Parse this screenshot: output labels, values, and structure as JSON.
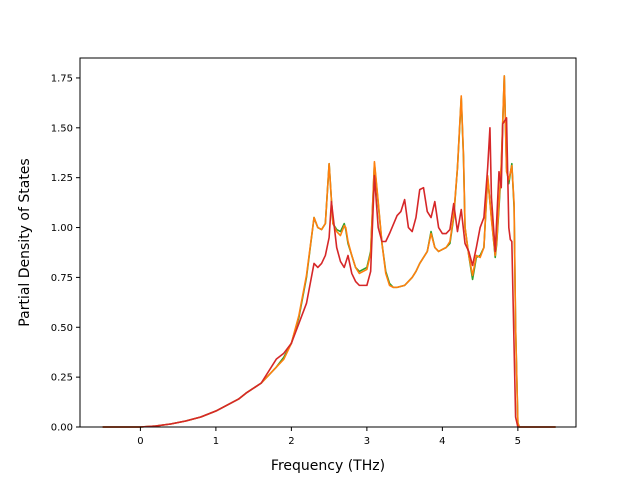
{
  "chart_data": {
    "type": "line",
    "title": "",
    "xlabel": "Frequency (THz)",
    "ylabel": "Partial Density of States",
    "xlim": [
      -0.8,
      5.77
    ],
    "ylim": [
      0,
      1.85
    ],
    "xticks": [
      0,
      1,
      2,
      3,
      4,
      5
    ],
    "xtick_labels": [
      "0",
      "1",
      "2",
      "3",
      "4",
      "5"
    ],
    "yticks": [
      0,
      0.25,
      0.5,
      0.75,
      1.0,
      1.25,
      1.5,
      1.75
    ],
    "ytick_labels": [
      "0.00",
      "0.25",
      "0.50",
      "0.75",
      "1.00",
      "1.25",
      "1.50",
      "1.75"
    ],
    "grid": false,
    "series": [
      {
        "color": "#2ca02c",
        "x": [
          -0.5,
          0.0,
          0.2,
          0.4,
          0.6,
          0.8,
          1.0,
          1.2,
          1.3,
          1.4,
          1.6,
          1.8,
          1.9,
          2.0,
          2.1,
          2.2,
          2.3,
          2.35,
          2.4,
          2.45,
          2.5,
          2.55,
          2.6,
          2.65,
          2.7,
          2.72,
          2.75,
          2.8,
          2.85,
          2.9,
          3.0,
          3.05,
          3.1,
          3.15,
          3.2,
          3.25,
          3.3,
          3.35,
          3.4,
          3.5,
          3.55,
          3.6,
          3.65,
          3.7,
          3.8,
          3.85,
          3.9,
          3.95,
          4.0,
          4.05,
          4.1,
          4.15,
          4.2,
          4.25,
          4.28,
          4.3,
          4.35,
          4.4,
          4.45,
          4.5,
          4.55,
          4.6,
          4.65,
          4.7,
          4.72,
          4.75,
          4.78,
          4.82,
          4.85,
          4.88,
          4.92,
          4.95,
          4.97,
          5.0,
          5.02,
          5.5
        ],
        "y": [
          0,
          0,
          0.005,
          0.015,
          0.03,
          0.05,
          0.08,
          0.12,
          0.14,
          0.17,
          0.22,
          0.3,
          0.35,
          0.42,
          0.55,
          0.75,
          1.05,
          1.0,
          0.99,
          1.02,
          1.32,
          1.02,
          0.99,
          0.98,
          1.02,
          0.99,
          0.92,
          0.86,
          0.8,
          0.78,
          0.8,
          0.88,
          1.32,
          1.12,
          0.92,
          0.78,
          0.72,
          0.7,
          0.7,
          0.71,
          0.73,
          0.75,
          0.78,
          0.82,
          0.88,
          0.98,
          0.9,
          0.88,
          0.89,
          0.9,
          0.92,
          1.05,
          1.3,
          1.65,
          1.35,
          1.0,
          0.86,
          0.74,
          0.85,
          0.86,
          0.9,
          1.25,
          1.05,
          0.85,
          0.92,
          1.1,
          1.3,
          1.76,
          1.3,
          1.22,
          1.32,
          1.1,
          0.5,
          0.02,
          0,
          0
        ]
      },
      {
        "color": "#ff7f0e",
        "x": [
          -0.5,
          0.0,
          0.2,
          0.4,
          0.6,
          0.8,
          1.0,
          1.2,
          1.3,
          1.4,
          1.6,
          1.8,
          1.9,
          2.0,
          2.1,
          2.2,
          2.3,
          2.35,
          2.4,
          2.45,
          2.5,
          2.55,
          2.6,
          2.65,
          2.7,
          2.72,
          2.75,
          2.8,
          2.85,
          2.9,
          3.0,
          3.05,
          3.1,
          3.15,
          3.2,
          3.25,
          3.3,
          3.35,
          3.4,
          3.5,
          3.55,
          3.6,
          3.65,
          3.7,
          3.8,
          3.85,
          3.9,
          3.95,
          4.0,
          4.05,
          4.1,
          4.15,
          4.2,
          4.25,
          4.28,
          4.3,
          4.35,
          4.4,
          4.45,
          4.5,
          4.55,
          4.6,
          4.65,
          4.7,
          4.72,
          4.75,
          4.78,
          4.82,
          4.85,
          4.88,
          4.92,
          4.95,
          4.97,
          5.0,
          5.02,
          5.5
        ],
        "y": [
          0,
          0,
          0.005,
          0.015,
          0.03,
          0.05,
          0.08,
          0.12,
          0.14,
          0.17,
          0.22,
          0.3,
          0.34,
          0.42,
          0.56,
          0.76,
          1.05,
          1.0,
          0.99,
          1.02,
          1.32,
          1.02,
          0.98,
          0.96,
          1.01,
          1.0,
          0.93,
          0.86,
          0.8,
          0.77,
          0.79,
          0.87,
          1.33,
          1.13,
          0.92,
          0.77,
          0.71,
          0.7,
          0.7,
          0.71,
          0.73,
          0.75,
          0.78,
          0.82,
          0.88,
          0.97,
          0.9,
          0.88,
          0.89,
          0.9,
          0.93,
          1.06,
          1.3,
          1.66,
          1.36,
          1.0,
          0.86,
          0.76,
          0.86,
          0.85,
          0.9,
          1.26,
          1.04,
          0.86,
          0.93,
          1.12,
          1.32,
          1.76,
          1.28,
          1.24,
          1.31,
          1.12,
          0.5,
          0.02,
          0,
          0
        ]
      },
      {
        "color": "#d62728",
        "x": [
          -0.5,
          0.0,
          0.2,
          0.4,
          0.6,
          0.8,
          1.0,
          1.2,
          1.3,
          1.4,
          1.6,
          1.8,
          1.9,
          2.0,
          2.1,
          2.2,
          2.25,
          2.3,
          2.35,
          2.4,
          2.45,
          2.5,
          2.53,
          2.6,
          2.65,
          2.7,
          2.75,
          2.8,
          2.85,
          2.9,
          3.0,
          3.05,
          3.1,
          3.15,
          3.2,
          3.25,
          3.3,
          3.4,
          3.45,
          3.5,
          3.55,
          3.6,
          3.65,
          3.7,
          3.75,
          3.8,
          3.85,
          3.9,
          3.95,
          4.0,
          4.05,
          4.1,
          4.15,
          4.2,
          4.25,
          4.3,
          4.35,
          4.4,
          4.45,
          4.5,
          4.55,
          4.6,
          4.63,
          4.65,
          4.7,
          4.75,
          4.78,
          4.8,
          4.85,
          4.88,
          4.9,
          4.92,
          4.95,
          4.97,
          5.0,
          5.02,
          5.5
        ],
        "y": [
          0,
          0,
          0.005,
          0.015,
          0.03,
          0.05,
          0.08,
          0.12,
          0.14,
          0.17,
          0.22,
          0.34,
          0.37,
          0.42,
          0.52,
          0.62,
          0.72,
          0.82,
          0.8,
          0.82,
          0.86,
          0.95,
          1.13,
          0.9,
          0.83,
          0.8,
          0.86,
          0.77,
          0.73,
          0.71,
          0.71,
          0.78,
          1.26,
          1.0,
          0.93,
          0.93,
          0.97,
          1.06,
          1.08,
          1.14,
          1.0,
          0.98,
          1.05,
          1.19,
          1.2,
          1.08,
          1.05,
          1.13,
          1.0,
          0.97,
          0.97,
          0.99,
          1.12,
          0.98,
          1.09,
          0.92,
          0.88,
          0.81,
          0.9,
          1.0,
          1.05,
          1.3,
          1.5,
          1.15,
          0.88,
          1.28,
          1.2,
          1.52,
          1.55,
          1.0,
          0.94,
          0.93,
          0.4,
          0.05,
          0.0,
          0,
          0
        ]
      }
    ]
  }
}
